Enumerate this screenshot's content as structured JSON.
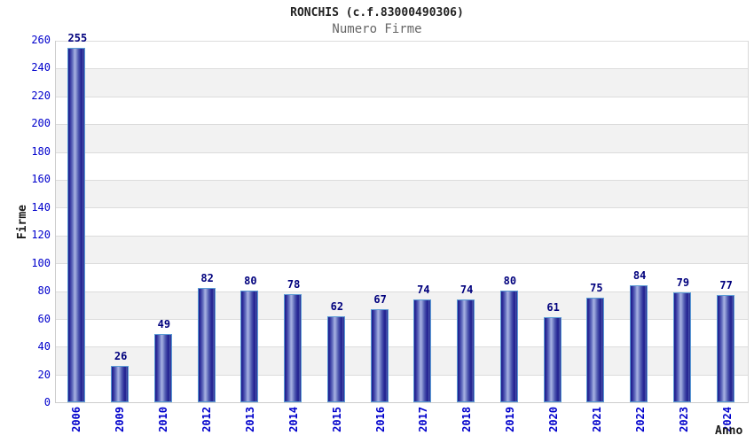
{
  "header": {
    "title": "RONCHIS (c.f.83000490306)",
    "subtitle": "Numero Firme"
  },
  "chart_data": {
    "type": "bar",
    "title": "RONCHIS (c.f.83000490306)",
    "subtitle": "Numero Firme",
    "xlabel": "Anno",
    "ylabel": "Firme",
    "ylim": [
      0,
      260
    ],
    "ytick_step": 20,
    "ytick_labels": [
      "0",
      "20",
      "40",
      "60",
      "80",
      "100",
      "120",
      "140",
      "160",
      "180",
      "200",
      "220",
      "240",
      "260"
    ],
    "categories": [
      "2006",
      "2009",
      "2010",
      "2012",
      "2013",
      "2014",
      "2015",
      "2016",
      "2017",
      "2018",
      "2019",
      "2020",
      "2021",
      "2022",
      "2023",
      "2024"
    ],
    "values": [
      255,
      26,
      49,
      82,
      80,
      78,
      62,
      67,
      74,
      74,
      80,
      61,
      75,
      84,
      79,
      77
    ],
    "grid": "horizontal",
    "legend_position": "none",
    "colors": {
      "tick_label": "#0000cc",
      "value_label": "#00007d",
      "bar_edge_dark": "#1b1b8a",
      "bar_highlight": "#a7b1e2",
      "bar_border": "#5b9bd5",
      "grid_line": "#dcdcdc",
      "band_alt": "#f2f2f2",
      "band_base": "#ffffff",
      "title_text": "#222222",
      "subtitle_text": "#666666",
      "axis_label_text": "#1a1a1a"
    }
  }
}
